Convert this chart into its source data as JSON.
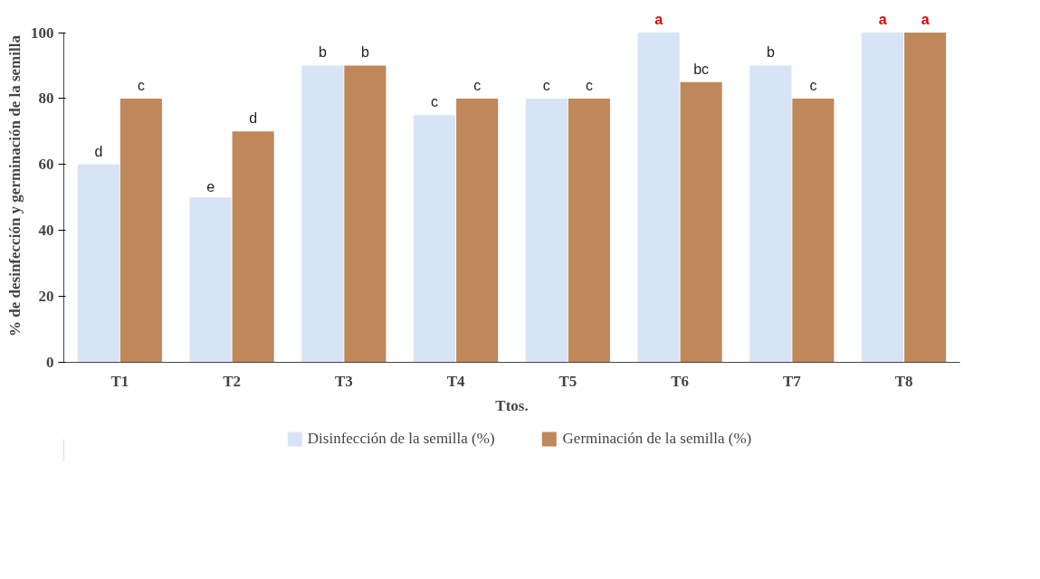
{
  "chart_data": {
    "type": "bar",
    "xlabel": "Ttos.",
    "ylabel": "% de desinfección y germinación de la semilla",
    "categories": [
      "T1",
      "T2",
      "T3",
      "T4",
      "T5",
      "T6",
      "T7",
      "T8"
    ],
    "series": [
      {
        "name": "Disinfección de la semilla (%)",
        "color": "#d6e4f5",
        "values": [
          60,
          50,
          90,
          75,
          80,
          100,
          90,
          100
        ],
        "value_labels": [
          "d",
          "e",
          "b",
          "c",
          "c",
          "a",
          "b",
          "a"
        ]
      },
      {
        "name": "Germinación de la semilla (%)",
        "color": "#c0875a",
        "values": [
          80,
          70,
          90,
          80,
          80,
          85,
          80,
          100
        ],
        "value_labels": [
          "c",
          "d",
          "b",
          "c",
          "c",
          "bc",
          "c",
          "a"
        ]
      }
    ],
    "ylim": [
      0,
      100
    ],
    "yticks": [
      0,
      20,
      40,
      60,
      80,
      100
    ],
    "legend": "bottom"
  }
}
